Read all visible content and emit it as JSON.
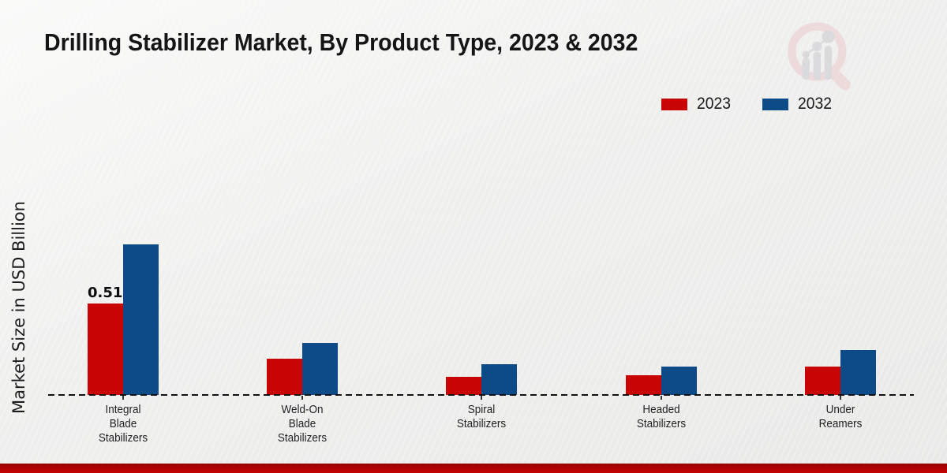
{
  "header": {
    "title": "Drilling Stabilizer Market, By Product Type, 2023 & 2032"
  },
  "branding": {
    "watermark_icon": "magnifier-growth-chart-logo",
    "watermark_ring_color": "#ecc9cc",
    "watermark_glyph_color": "#c9cacf"
  },
  "legend": {
    "items": [
      {
        "label": "2023",
        "color": "#c80404"
      },
      {
        "label": "2032",
        "color": "#0c4b87"
      }
    ]
  },
  "chart_data": {
    "type": "bar",
    "title": "Drilling Stabilizer Market, By Product Type, 2023 & 2032",
    "xlabel": "",
    "ylabel": "Market Size in USD Billion",
    "categories": [
      "Integral Blade Stabilizers",
      "Weld-On Blade Stabilizers",
      "Spiral Stabilizers",
      "Headed Stabilizers",
      "Under Reamers"
    ],
    "series": [
      {
        "name": "2023",
        "color": "#c80404",
        "values": [
          0.51,
          0.2,
          0.1,
          0.11,
          0.16
        ],
        "labels": [
          "0.51",
          "",
          "",
          "",
          ""
        ]
      },
      {
        "name": "2032",
        "color": "#0c4b87",
        "values": [
          0.84,
          0.29,
          0.17,
          0.16,
          0.25
        ],
        "labels": [
          "",
          "",
          "",
          "",
          ""
        ]
      }
    ],
    "ylim": [
      0,
      0.9
    ],
    "grid": false,
    "baseline_style": "dashed",
    "legend_position": "top-right"
  },
  "footer": {
    "bar_color": "#b00202"
  }
}
